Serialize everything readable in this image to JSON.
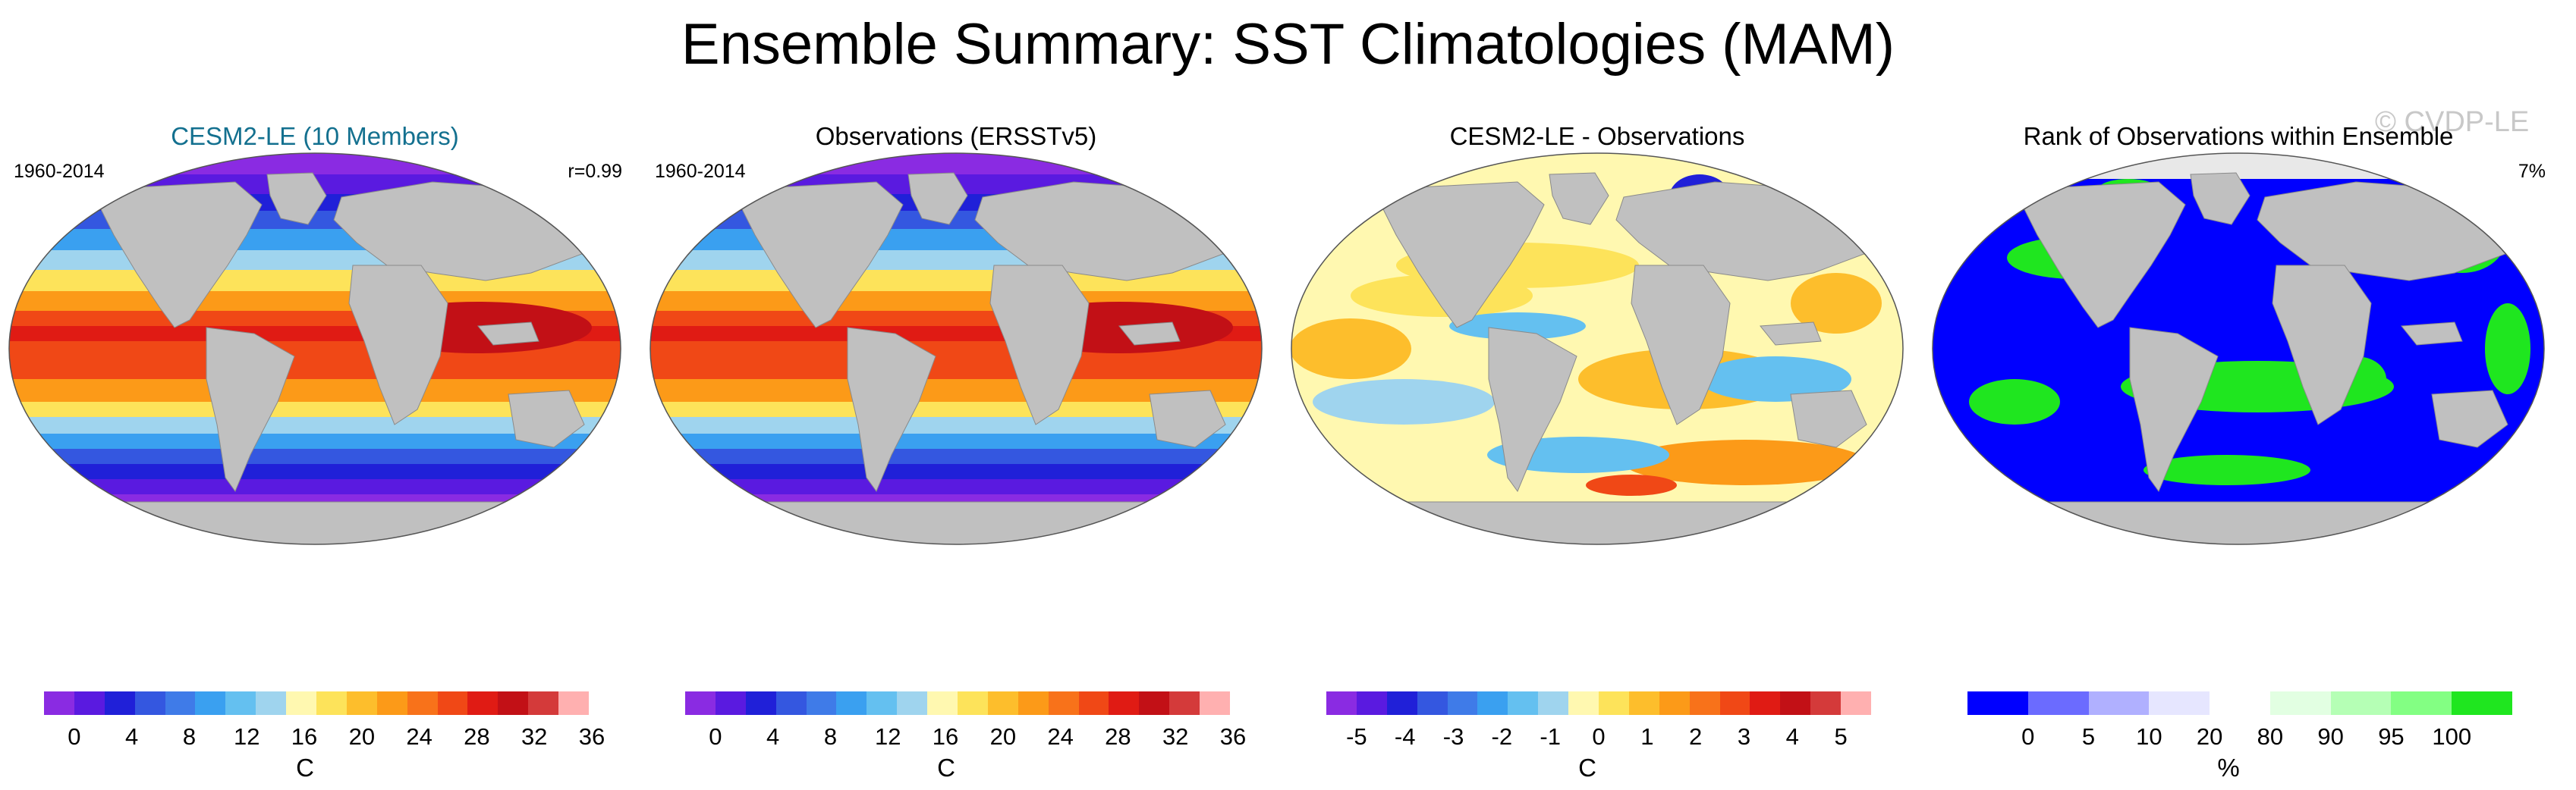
{
  "title": "Ensemble Summary: SST Climatologies (MAM)",
  "watermark": "© CVDP-LE",
  "colors": {
    "land": "#c0c0c0",
    "title_teal": "#13708f",
    "temperature_scale": [
      "#8a2be2",
      "#5a1ae0",
      "#2020d8",
      "#3457e0",
      "#3f7be8",
      "#3aa0f0",
      "#64c0f0",
      "#9fd4ee",
      "#fff8b0",
      "#fde35a",
      "#fdbe2c",
      "#fc9a18",
      "#f8721a",
      "#f04816",
      "#e01b14",
      "#c21016",
      "#d43a3a",
      "#ffb0b0"
    ],
    "anomaly_scale": [
      "#8a2be2",
      "#5a1ae0",
      "#2020d8",
      "#3457e0",
      "#3f7be8",
      "#3aa0f0",
      "#64c0f0",
      "#9fd4ee",
      "#fff8b0",
      "#fde35a",
      "#fdbe2c",
      "#fc9a18",
      "#f8721a",
      "#f04816",
      "#e01b14",
      "#c21016",
      "#d43a3a",
      "#ffb0b0"
    ],
    "rank_scale": [
      "#0000ff",
      "#6b6bff",
      "#b0b0ff",
      "#e6e6ff",
      "#ffffff",
      "#e2ffe2",
      "#b5ffb5",
      "#83ff83",
      "#1fe61f"
    ]
  },
  "panels": [
    {
      "title": "CESM2-LE (10 Members)",
      "period": "1960-2014",
      "stat": "r=0.99",
      "map_type": "sst",
      "colorbar": {
        "ticks": [
          "0",
          "4",
          "8",
          "12",
          "16",
          "20",
          "24",
          "28",
          "32",
          "36"
        ],
        "unit": "C",
        "scale": "temperature_scale"
      }
    },
    {
      "title": "Observations (ERSSTv5)",
      "period": "1960-2014",
      "stat": "",
      "map_type": "sst",
      "colorbar": {
        "ticks": [
          "0",
          "4",
          "8",
          "12",
          "16",
          "20",
          "24",
          "28",
          "32",
          "36"
        ],
        "unit": "C",
        "scale": "temperature_scale"
      }
    },
    {
      "title": "CESM2-LE - Observations",
      "period": "",
      "stat": "",
      "map_type": "bias",
      "colorbar": {
        "ticks": [
          "-5",
          "-4",
          "-3",
          "-2",
          "-1",
          "0",
          "1",
          "2",
          "3",
          "4",
          "5"
        ],
        "unit": "C",
        "scale": "anomaly_scale"
      }
    },
    {
      "title": "Rank of Observations within Ensemble",
      "period": "",
      "stat": "7%",
      "map_type": "rank",
      "colorbar": {
        "ticks": [
          "0",
          "5",
          "10",
          "20",
          "80",
          "90",
          "95",
          "100"
        ],
        "unit": "%",
        "scale": "rank_scale"
      }
    }
  ]
}
